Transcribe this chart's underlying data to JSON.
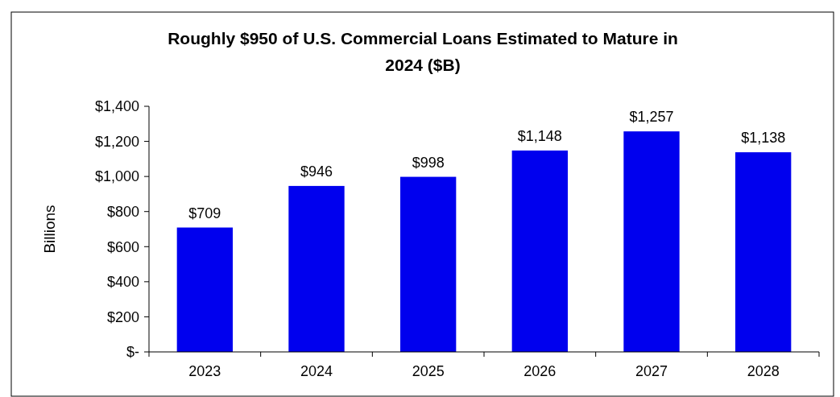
{
  "chart_data": {
    "type": "bar",
    "title": "Roughly $950 of U.S. Commercial Loans Estimated to Mature in 2024 ($B)",
    "ylabel": "Billions",
    "categories": [
      "2023",
      "2024",
      "2025",
      "2026",
      "2027",
      "2028"
    ],
    "values": [
      709,
      946,
      998,
      1148,
      1257,
      1138
    ],
    "value_labels": [
      "$709",
      "$946",
      "$998",
      "$1,148",
      "$1,257",
      "$1,138"
    ],
    "color": "#0000ee",
    "ylim": [
      0,
      1400
    ],
    "yticks": [
      {
        "value": 0,
        "label": "$-"
      },
      {
        "value": 200,
        "label": "$200"
      },
      {
        "value": 400,
        "label": "$400"
      },
      {
        "value": 600,
        "label": "$600"
      },
      {
        "value": 800,
        "label": "$800"
      },
      {
        "value": 1000,
        "label": "$1,000"
      },
      {
        "value": 1200,
        "label": "$1,200"
      },
      {
        "value": 1400,
        "label": "$1,400"
      }
    ],
    "grid": false
  }
}
